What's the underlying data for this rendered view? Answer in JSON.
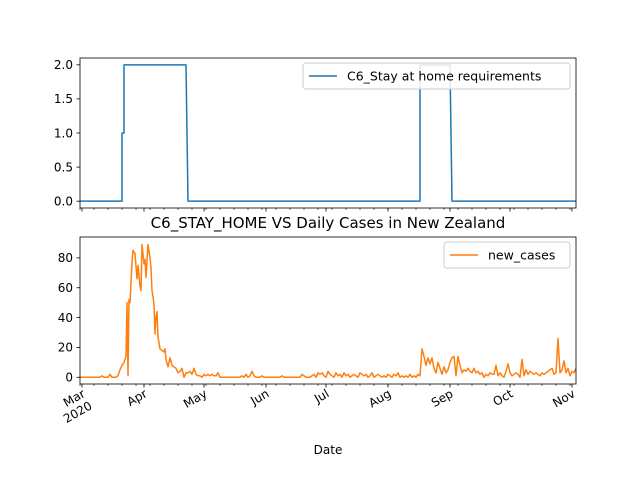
{
  "chart_data": [
    {
      "type": "line",
      "title": "",
      "xlabel": "",
      "ylabel": "",
      "ylim": [
        -0.1,
        2.1
      ],
      "yticks": [
        0.0,
        0.5,
        1.0,
        1.5,
        2.0
      ],
      "ytick_labels": [
        "0.0",
        "0.5",
        "1.0",
        "1.5",
        "2.0"
      ],
      "legend": "top-right",
      "x_unit": "days since 2020-02-29",
      "series": [
        {
          "name": "C6_Stay at home requirements",
          "color": "#1f77b4",
          "points": [
            [
              0,
              0
            ],
            [
              21,
              0
            ],
            [
              21,
              1
            ],
            [
              22,
              1
            ],
            [
              22,
              2
            ],
            [
              53,
              2
            ],
            [
              53,
              2
            ],
            [
              54,
              0
            ],
            [
              170,
              0
            ],
            [
              170,
              2
            ],
            [
              185,
              2
            ],
            [
              186,
              0
            ],
            [
              248,
              0
            ]
          ]
        }
      ]
    },
    {
      "type": "line",
      "title": "C6_STAY_HOME VS Daily Cases in New Zealand",
      "xlabel": "Date",
      "ylabel": "",
      "ylim": [
        -4.5,
        94
      ],
      "yticks": [
        0,
        20,
        40,
        60,
        80
      ],
      "ytick_labels": [
        "0",
        "20",
        "40",
        "60",
        "80"
      ],
      "legend": "top-right",
      "x_unit": "days since 2020-02-29",
      "xticks": [
        1,
        32,
        62,
        93,
        123,
        154,
        185,
        215,
        246
      ],
      "xtick_labels": [
        "Mar\n2020",
        "Apr",
        "May",
        "Jun",
        "Jul",
        "Aug",
        "Sep",
        "Oct",
        "Nov"
      ],
      "series": [
        {
          "name": "new_cases",
          "color": "#ff7f0e",
          "points": [
            [
              0,
              0
            ],
            [
              10,
              0
            ],
            [
              11,
              1
            ],
            [
              12,
              0
            ],
            [
              14,
              0
            ],
            [
              15,
              2
            ],
            [
              16,
              0
            ],
            [
              18,
              0
            ],
            [
              19,
              1
            ],
            [
              20,
              5
            ],
            [
              21,
              8
            ],
            [
              22,
              10
            ],
            [
              23,
              14
            ],
            [
              23.5,
              50
            ],
            [
              24,
              1
            ],
            [
              24.5,
              52
            ],
            [
              25,
              50
            ],
            [
              26,
              77
            ],
            [
              26.5,
              85
            ],
            [
              27.5,
              83
            ],
            [
              28.5,
              66
            ],
            [
              29,
              75
            ],
            [
              30,
              61
            ],
            [
              30.5,
              58
            ],
            [
              31,
              89
            ],
            [
              32,
              76
            ],
            [
              32.5,
              79
            ],
            [
              33,
              67
            ],
            [
              34,
              89
            ],
            [
              35,
              80
            ],
            [
              35.5,
              73
            ],
            [
              36,
              58
            ],
            [
              36.5,
              54
            ],
            [
              37,
              49
            ],
            [
              37.5,
              29
            ],
            [
              38,
              40
            ],
            [
              38.5,
              44
            ],
            [
              39,
              27
            ],
            [
              40,
              19
            ],
            [
              41,
              18
            ],
            [
              42,
              17
            ],
            [
              42.5,
              19
            ],
            [
              43,
              12
            ],
            [
              44,
              7
            ],
            [
              45,
              13
            ],
            [
              46,
              8
            ],
            [
              47,
              7
            ],
            [
              48,
              6
            ],
            [
              49,
              3
            ],
            [
              50,
              4
            ],
            [
              51,
              6
            ],
            [
              52,
              0
            ],
            [
              53,
              3
            ],
            [
              54,
              3
            ],
            [
              55,
              4
            ],
            [
              56,
              2
            ],
            [
              57,
              6
            ],
            [
              58,
              2
            ],
            [
              59,
              1
            ],
            [
              60,
              1
            ],
            [
              61,
              0
            ],
            [
              62,
              2
            ],
            [
              63,
              1
            ],
            [
              64,
              2
            ],
            [
              65,
              1
            ],
            [
              66,
              2
            ],
            [
              67,
              1
            ],
            [
              68,
              1
            ],
            [
              69,
              3
            ],
            [
              70,
              0
            ],
            [
              80,
              0
            ],
            [
              81,
              1
            ],
            [
              82,
              0
            ],
            [
              83,
              2
            ],
            [
              84,
              0
            ],
            [
              85,
              1
            ],
            [
              86,
              4
            ],
            [
              87,
              1
            ],
            [
              88,
              0
            ],
            [
              90,
              0
            ],
            [
              91,
              1
            ],
            [
              92,
              0
            ],
            [
              100,
              0
            ],
            [
              101,
              1
            ],
            [
              102,
              0
            ],
            [
              110,
              0
            ],
            [
              111,
              2
            ],
            [
              112,
              1
            ],
            [
              113,
              0
            ],
            [
              115,
              0
            ],
            [
              116,
              1
            ],
            [
              117,
              2
            ],
            [
              118,
              0
            ],
            [
              119,
              3
            ],
            [
              120,
              2
            ],
            [
              121,
              3
            ],
            [
              122,
              1
            ],
            [
              123,
              0
            ],
            [
              124,
              4
            ],
            [
              125,
              2
            ],
            [
              126,
              1
            ],
            [
              127,
              0
            ],
            [
              128,
              3
            ],
            [
              129,
              1
            ],
            [
              130,
              2
            ],
            [
              131,
              0
            ],
            [
              132,
              3
            ],
            [
              133,
              1
            ],
            [
              134,
              2
            ],
            [
              135,
              0
            ],
            [
              136,
              1
            ],
            [
              137,
              2
            ],
            [
              138,
              1
            ],
            [
              139,
              0
            ],
            [
              140,
              3
            ],
            [
              141,
              2
            ],
            [
              142,
              1
            ],
            [
              143,
              2
            ],
            [
              144,
              0
            ],
            [
              145,
              1
            ],
            [
              146,
              3
            ],
            [
              147,
              0
            ],
            [
              148,
              1
            ],
            [
              149,
              2
            ],
            [
              150,
              1
            ],
            [
              151,
              0
            ],
            [
              152,
              1
            ],
            [
              153,
              0
            ],
            [
              154,
              2
            ],
            [
              155,
              1
            ],
            [
              156,
              0
            ],
            [
              157,
              2
            ],
            [
              158,
              1
            ],
            [
              159,
              3
            ],
            [
              160,
              0
            ],
            [
              161,
              1
            ],
            [
              162,
              0
            ],
            [
              163,
              1
            ],
            [
              164,
              0
            ],
            [
              165,
              2
            ],
            [
              166,
              0
            ],
            [
              167,
              1
            ],
            [
              168,
              0
            ],
            [
              169,
              2
            ],
            [
              170,
              1
            ],
            [
              171,
              19
            ],
            [
              172,
              14
            ],
            [
              173,
              8
            ],
            [
              174,
              13
            ],
            [
              175,
              9
            ],
            [
              176,
              13
            ],
            [
              177,
              6
            ],
            [
              178,
              3
            ],
            [
              179,
              10
            ],
            [
              180,
              6
            ],
            [
              181,
              2
            ],
            [
              182,
              7
            ],
            [
              183,
              3
            ],
            [
              184,
              5
            ],
            [
              185,
              10
            ],
            [
              186,
              13
            ],
            [
              187,
              14
            ],
            [
              188,
              1
            ],
            [
              189,
              14
            ],
            [
              190,
              8
            ],
            [
              191,
              3
            ],
            [
              192,
              5
            ],
            [
              193,
              4
            ],
            [
              194,
              6
            ],
            [
              195,
              4
            ],
            [
              196,
              3
            ],
            [
              197,
              6
            ],
            [
              198,
              3
            ],
            [
              199,
              4
            ],
            [
              200,
              2
            ],
            [
              201,
              3
            ],
            [
              202,
              0
            ],
            [
              203,
              2
            ],
            [
              204,
              1
            ],
            [
              205,
              3
            ],
            [
              206,
              2
            ],
            [
              207,
              2
            ],
            [
              208,
              8
            ],
            [
              209,
              1
            ],
            [
              210,
              3
            ],
            [
              211,
              1
            ],
            [
              212,
              0
            ],
            [
              213,
              4
            ],
            [
              214,
              9
            ],
            [
              215,
              3
            ],
            [
              216,
              1
            ],
            [
              217,
              2
            ],
            [
              218,
              3
            ],
            [
              219,
              2
            ],
            [
              220,
              0
            ],
            [
              221,
              12
            ],
            [
              222,
              1
            ],
            [
              223,
              5
            ],
            [
              224,
              2
            ],
            [
              225,
              4
            ],
            [
              226,
              3
            ],
            [
              227,
              2
            ],
            [
              228,
              3
            ],
            [
              229,
              2
            ],
            [
              230,
              1
            ],
            [
              231,
              3
            ],
            [
              232,
              2
            ],
            [
              233,
              3
            ],
            [
              234,
              4
            ],
            [
              235,
              5
            ],
            [
              236,
              6
            ],
            [
              237,
              2
            ],
            [
              238,
              3
            ],
            [
              239,
              26
            ],
            [
              240,
              3
            ],
            [
              241,
              5
            ],
            [
              242,
              11
            ],
            [
              243,
              3
            ],
            [
              244,
              6
            ],
            [
              245,
              1
            ],
            [
              246,
              4
            ],
            [
              247,
              3
            ],
            [
              248,
              6
            ]
          ]
        }
      ]
    }
  ]
}
